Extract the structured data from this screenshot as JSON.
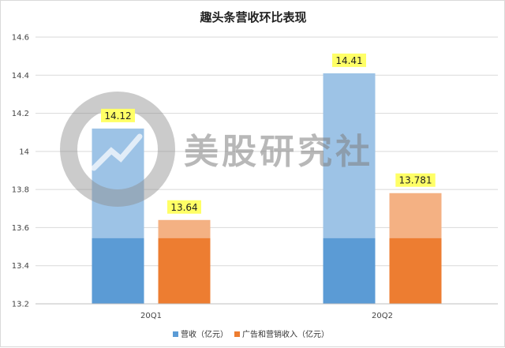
{
  "chart_data": {
    "type": "bar",
    "title": "趣头条营收环比表现",
    "categories": [
      "20Q1",
      "20Q2"
    ],
    "series": [
      {
        "name": "营收（亿元）",
        "values": [
          14.12,
          14.41
        ],
        "labels": [
          "14.12",
          "14.41"
        ],
        "color": "#5b9bd5"
      },
      {
        "name": "广告和营销收入（亿元）",
        "values": [
          13.64,
          13.781
        ],
        "labels": [
          "13.64",
          "13.781"
        ],
        "color": "#ed7d31"
      }
    ],
    "ylim": [
      13.2,
      14.6
    ],
    "yticks": [
      "13.2",
      "13.4",
      "13.6",
      "13.8",
      "14",
      "14.2",
      "14.4",
      "14.6"
    ],
    "xlabel": "",
    "ylabel": "",
    "grid": true,
    "legend": "bottom",
    "label_highlight": "#ffff66"
  },
  "watermark": {
    "text": "美股研究社"
  }
}
